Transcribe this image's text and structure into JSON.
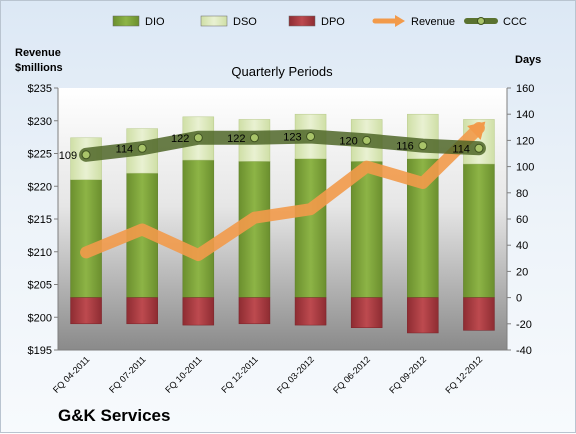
{
  "company": "G&K Services",
  "chart_data": {
    "type": "bar",
    "title": "Quarterly Periods",
    "categories": [
      "FQ 04-2011",
      "FQ 07-2011",
      "FQ 10-2011",
      "FQ 12-2011",
      "FQ 03-2012",
      "FQ 06-2012",
      "FQ 09-2012",
      "FQ 12-2012"
    ],
    "left_axis": {
      "label_line1": "Revenue",
      "label_line2": "$millions",
      "ylim": [
        195,
        235
      ],
      "ticks": [
        "$195",
        "$200",
        "$205",
        "$210",
        "$215",
        "$220",
        "$225",
        "$230",
        "$235"
      ]
    },
    "right_axis": {
      "label": "Days",
      "ylim": [
        -40,
        160
      ],
      "ticks": [
        "-40",
        "-20",
        "0",
        "20",
        "40",
        "60",
        "80",
        "100",
        "120",
        "140",
        "160"
      ]
    },
    "series": [
      {
        "name": "DIO",
        "axis": "right",
        "style": "stacked-bar",
        "color": "#7aa03a",
        "values": [
          90,
          95,
          105,
          104,
          106,
          104,
          106,
          102
        ]
      },
      {
        "name": "DSO",
        "axis": "right",
        "style": "stacked-bar",
        "color": "#dde9bd",
        "values": [
          32,
          34,
          33,
          32,
          34,
          32,
          34,
          34
        ]
      },
      {
        "name": "DPO",
        "axis": "right",
        "style": "bar-negative",
        "color": "#a8383d",
        "values": [
          -20,
          -20,
          -21,
          -20,
          -21,
          -23,
          -27,
          -25
        ]
      },
      {
        "name": "Revenue",
        "axis": "left",
        "style": "line",
        "color": "#f29a4a",
        "values": [
          209.9,
          213.4,
          209.5,
          215.2,
          216.5,
          223.0,
          220.5,
          228.9
        ]
      },
      {
        "name": "CCC",
        "axis": "right",
        "style": "line-markers",
        "color": "#5a7230",
        "values": [
          109,
          114,
          122,
          122,
          123,
          120,
          116,
          114
        ],
        "data_labels": [
          "109",
          "114",
          "122",
          "122",
          "123",
          "120",
          "116",
          "114"
        ]
      }
    ],
    "legend_position": "top",
    "grid": false
  }
}
